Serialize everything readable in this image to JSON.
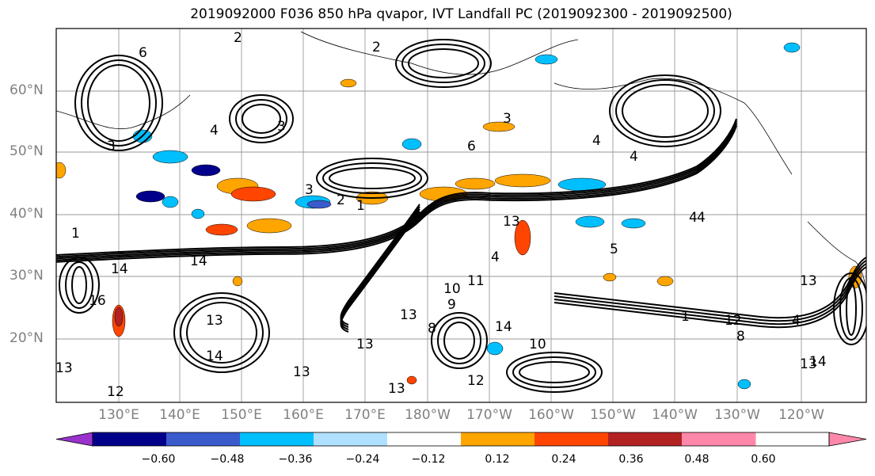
{
  "title": "2019092000 F036 850 hPa qvapor, IVT Landfall PC (2019092300 - 2019092500)",
  "lat_labels": [
    "60°N",
    "50°N",
    "40°N",
    "30°N",
    "20°N"
  ],
  "lon_labels": [
    "130°E",
    "140°E",
    "150°E",
    "160°E",
    "170°E",
    "180°W",
    "170°W",
    "160°W",
    "150°W",
    "140°W",
    "130°W",
    "120°W"
  ],
  "contour_labels": [
    "2",
    "2",
    "3",
    "4",
    "6",
    "3",
    "4",
    "4",
    "3",
    "2",
    "1",
    "3",
    "1",
    "4",
    "4",
    "6",
    "13",
    "14",
    "13",
    "10",
    "11",
    "9",
    "13",
    "13",
    "16",
    "13",
    "14",
    "13",
    "13",
    "12",
    "10",
    "14",
    "13",
    "12",
    "8",
    "14",
    "13",
    "1",
    "14",
    "8",
    "12",
    "5",
    "4",
    "4"
  ],
  "colorbar": {
    "ticks": [
      "−0.60",
      "−0.48",
      "−0.36",
      "−0.24",
      "−0.12",
      "0.12",
      "0.24",
      "0.36",
      "0.48",
      "0.60"
    ],
    "colors": [
      "#9932CC",
      "#00008B",
      "#3A5BCC",
      "#00BFFF",
      "#B0E0FF",
      "#FFFFFF",
      "#FFE680",
      "#FFA500",
      "#FF4500",
      "#B22222",
      "#FF88AA"
    ]
  }
}
